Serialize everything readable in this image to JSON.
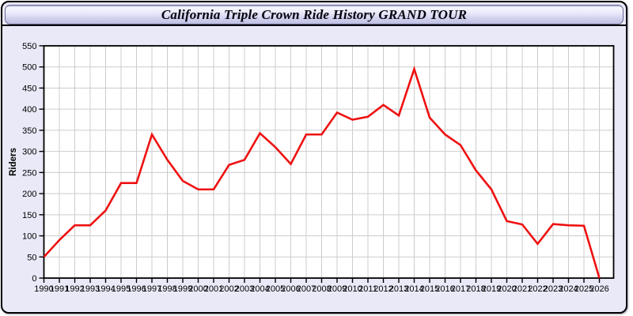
{
  "window": {
    "title": "California Triple Crown Ride History GRAND TOUR"
  },
  "colors": {
    "window_background": "#e9e9f8",
    "titlebar_gradient_top": "#f7f7fe",
    "titlebar_gradient_bottom": "#bfbfe2",
    "line_color": "#ee1111",
    "plot_background": "#ffffff",
    "grid_color": "#cccccc",
    "axis_color": "#000000"
  },
  "chart_data": {
    "type": "line",
    "title": "California Triple Crown Ride History GRAND TOUR",
    "xlabel": "",
    "ylabel": "Riders",
    "x": [
      1990,
      1991,
      1992,
      1993,
      1994,
      1995,
      1996,
      1997,
      1998,
      1999,
      2000,
      2001,
      2002,
      2003,
      2004,
      2005,
      2006,
      2007,
      2008,
      2009,
      2010,
      2011,
      2012,
      2013,
      2014,
      2015,
      2016,
      2017,
      2018,
      2019,
      2020,
      2021,
      2022,
      2023,
      2024,
      2025,
      2026
    ],
    "series": [
      {
        "name": "Riders",
        "color": "#ee1111",
        "values": [
          50,
          90,
          125,
          125,
          160,
          225,
          225,
          340,
          280,
          230,
          210,
          210,
          268,
          280,
          343,
          310,
          270,
          340,
          340,
          392,
          375,
          382,
          410,
          385,
          495,
          380,
          340,
          315,
          255,
          210,
          135,
          127,
          81,
          128,
          125,
          124,
          0
        ]
      }
    ],
    "ylim": [
      0,
      550
    ],
    "y_tick_step": 50,
    "grid": true,
    "legend": "none",
    "plot_bg": "#ffffff",
    "grid_color": "#cccccc"
  }
}
